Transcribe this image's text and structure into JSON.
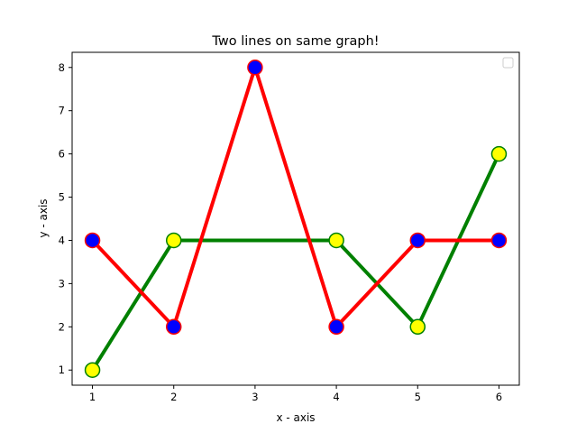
{
  "chart_data": {
    "type": "line",
    "title": "Two lines on same graph!",
    "xlabel": "x - axis",
    "ylabel": "y - axis",
    "xlim": [
      0.75,
      6.25
    ],
    "ylim": [
      0.65,
      8.35
    ],
    "xticks": [
      1,
      2,
      3,
      4,
      5,
      6
    ],
    "yticks": [
      1,
      2,
      3,
      4,
      5,
      6,
      7,
      8
    ],
    "grid": false,
    "legend": {
      "placement": "top-right",
      "entries": []
    },
    "series": [
      {
        "x": [
          1,
          2,
          4,
          5,
          6
        ],
        "y": [
          1,
          4,
          4,
          2,
          6
        ],
        "line_color": "#008000",
        "marker_face": "#ffff00",
        "marker_edge": "#008000"
      },
      {
        "x": [
          1,
          2,
          3,
          4,
          5,
          6
        ],
        "y": [
          4,
          2,
          8,
          2,
          4,
          4
        ],
        "line_color": "#ff0000",
        "marker_face": "#0000ff",
        "marker_edge": "#ff0000"
      }
    ]
  }
}
